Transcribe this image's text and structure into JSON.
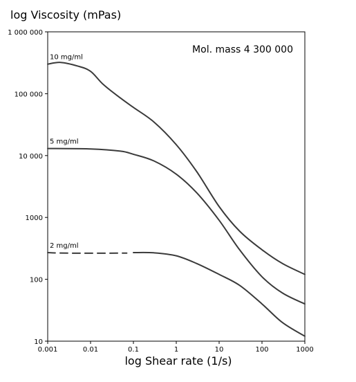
{
  "chart_data": {
    "type": "line",
    "title": "",
    "xlabel": "log Shear rate (1/s)",
    "ylabel": "log Viscosity (mPas)",
    "x_scale": "log",
    "y_scale": "log",
    "xlim": [
      0.001,
      1000
    ],
    "ylim": [
      10,
      1000000
    ],
    "x_ticks": [
      {
        "value": 0.001,
        "label": "0.001"
      },
      {
        "value": 0.01,
        "label": "0.01"
      },
      {
        "value": 0.1,
        "label": "0.1"
      },
      {
        "value": 1,
        "label": "1"
      },
      {
        "value": 10,
        "label": "10"
      },
      {
        "value": 100,
        "label": "100"
      },
      {
        "value": 1000,
        "label": "1000"
      }
    ],
    "y_ticks": [
      {
        "value": 10,
        "label": "10"
      },
      {
        "value": 100,
        "label": "100"
      },
      {
        "value": 1000,
        "label": "1000"
      },
      {
        "value": 10000,
        "label": "10 000"
      },
      {
        "value": 100000,
        "label": "100 000"
      },
      {
        "value": 1000000,
        "label": "1 000 000"
      }
    ],
    "annotation": "Mol. mass 4 300 000",
    "grid": false,
    "series": [
      {
        "name": "10 mg/ml",
        "line_style": "solid",
        "points": [
          [
            0.001,
            300000
          ],
          [
            0.002,
            320000
          ],
          [
            0.005,
            280000
          ],
          [
            0.01,
            230000
          ],
          [
            0.02,
            140000
          ],
          [
            0.05,
            85000
          ],
          [
            0.1,
            60000
          ],
          [
            0.3,
            35000
          ],
          [
            1,
            15000
          ],
          [
            3,
            5500
          ],
          [
            10,
            1500
          ],
          [
            30,
            600
          ],
          [
            100,
            300
          ],
          [
            300,
            180
          ],
          [
            1000,
            120
          ]
        ]
      },
      {
        "name": "5 mg/ml",
        "line_style": "solid",
        "points": [
          [
            0.001,
            13000
          ],
          [
            0.01,
            12800
          ],
          [
            0.05,
            11800
          ],
          [
            0.1,
            10500
          ],
          [
            0.3,
            8200
          ],
          [
            1,
            5000
          ],
          [
            3,
            2500
          ],
          [
            10,
            900
          ],
          [
            30,
            300
          ],
          [
            100,
            110
          ],
          [
            300,
            60
          ],
          [
            1000,
            40
          ]
        ]
      },
      {
        "name": "2 mg/ml",
        "line_style": "dashed-then-solid",
        "dashed_points": [
          [
            0.001,
            270
          ],
          [
            0.003,
            265
          ],
          [
            0.07,
            265
          ]
        ],
        "points": [
          [
            0.1,
            270
          ],
          [
            0.3,
            268
          ],
          [
            1,
            240
          ],
          [
            3,
            180
          ],
          [
            10,
            120
          ],
          [
            30,
            80
          ],
          [
            100,
            40
          ],
          [
            300,
            20
          ],
          [
            1000,
            12
          ]
        ]
      }
    ]
  }
}
